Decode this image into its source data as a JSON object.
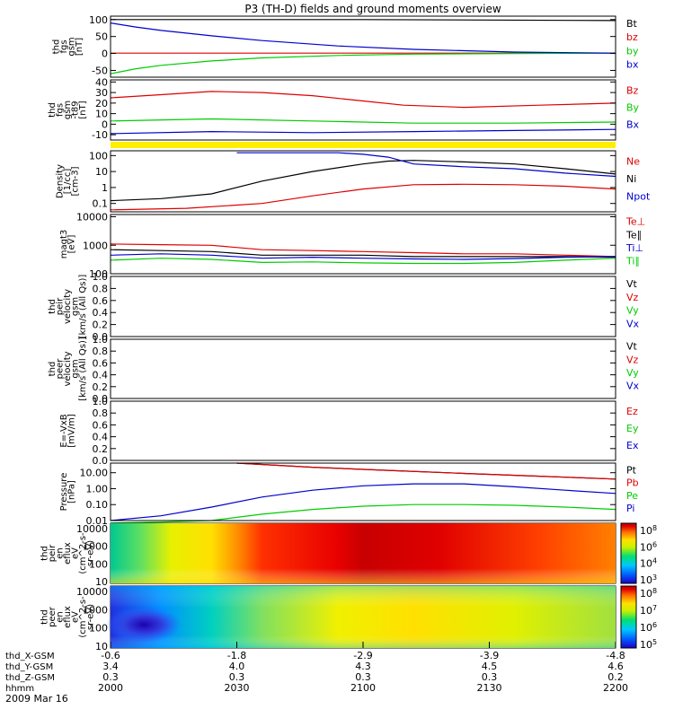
{
  "title": "P3 (TH-D) fields and ground moments overview",
  "chart_data": {
    "type": "line",
    "time_axis": {
      "tick_labels": [
        "2000",
        "2030",
        "2100",
        "2130",
        "2200"
      ],
      "row_labels": [
        "thd_X-GSM",
        "thd_Y-GSM",
        "thd_Z-GSM",
        "hhmm"
      ],
      "rows": [
        [
          "-0.6",
          "-1.8",
          "-2.9",
          "-3.9",
          "-4.8"
        ],
        [
          "3.4",
          "4.0",
          "4.3",
          "4.5",
          "4.6"
        ],
        [
          "0.3",
          "0.3",
          "0.3",
          "0.3",
          "0.2"
        ]
      ],
      "date_label": "2009 Mar 16"
    },
    "panels": [
      {
        "id": "fgs_gsm",
        "ylabel": [
          "thd",
          "fgs",
          "gsm",
          "[nT]"
        ],
        "scale": "linear",
        "ylim": [
          -70,
          110
        ],
        "ticks": [
          "100",
          "50",
          "0",
          "-50"
        ],
        "legend": [
          {
            "name": "Bt",
            "color": "#000000"
          },
          {
            "name": "bz",
            "color": "#dd0000"
          },
          {
            "name": "by",
            "color": "#00cc00"
          },
          {
            "name": "bx",
            "color": "#0000cc"
          }
        ],
        "series": [
          {
            "name": "Bt",
            "color": "#000000",
            "x": [
              0,
              0.5,
              1
            ],
            "values": [
              100,
              100,
              97
            ]
          },
          {
            "name": "bz",
            "color": "#dd0000",
            "x": [
              0,
              1
            ],
            "values": [
              1,
              1
            ]
          },
          {
            "name": "by",
            "color": "#00cc00",
            "x": [
              0,
              0.05,
              0.1,
              0.2,
              0.3,
              0.45,
              0.6,
              0.8,
              1
            ],
            "values": [
              -60,
              -45,
              -35,
              -22,
              -13,
              -6,
              -2,
              0,
              1
            ]
          },
          {
            "name": "bx",
            "color": "#0000cc",
            "x": [
              0,
              0.05,
              0.1,
              0.2,
              0.3,
              0.45,
              0.6,
              0.8,
              1
            ],
            "values": [
              90,
              78,
              68,
              52,
              38,
              22,
              12,
              4,
              1
            ]
          }
        ]
      },
      {
        "id": "fgs_gsm_model",
        "ylabel": [
          "thd",
          "fgs",
          "gsm",
          "-t89",
          "[nT]"
        ],
        "scale": "linear",
        "ylim": [
          -15,
          42
        ],
        "ticks": [
          "40",
          "30",
          "20",
          "10",
          "0",
          "-10"
        ],
        "legend": [
          {
            "name": "Bz",
            "color": "#dd0000"
          },
          {
            "name": "By",
            "color": "#00cc00"
          },
          {
            "name": "Bx",
            "color": "#0000cc"
          }
        ],
        "series": [
          {
            "name": "Bz",
            "color": "#dd0000",
            "x": [
              0,
              0.1,
              0.2,
              0.3,
              0.4,
              0.5,
              0.58,
              0.7,
              0.85,
              1
            ],
            "values": [
              25,
              28,
              31,
              30,
              27,
              22,
              18,
              16,
              18,
              20
            ]
          },
          {
            "name": "By",
            "color": "#00cc00",
            "x": [
              0,
              0.2,
              0.4,
              0.6,
              0.8,
              1
            ],
            "values": [
              3,
              5,
              3,
              1,
              1,
              2
            ]
          },
          {
            "name": "Bx",
            "color": "#0000cc",
            "x": [
              0,
              0.2,
              0.4,
              0.6,
              0.8,
              1
            ],
            "values": [
              -9,
              -7,
              -8,
              -7,
              -6,
              -5
            ]
          }
        ]
      },
      {
        "id": "density",
        "ylabel": [
          "Density",
          "[1/cc]",
          "[cm-3]"
        ],
        "scale": "log",
        "ylim": [
          0.03,
          200
        ],
        "ticks": [
          "100",
          "10",
          "1",
          "0.1"
        ],
        "legend": [
          {
            "name": "Ne",
            "color": "#dd0000"
          },
          {
            "name": "Ni",
            "color": "#000000"
          },
          {
            "name": "Npot",
            "color": "#0000cc"
          }
        ],
        "series": [
          {
            "name": "Ni",
            "color": "#000000",
            "x": [
              0,
              0.1,
              0.2,
              0.3,
              0.4,
              0.5,
              0.55,
              0.6,
              0.7,
              0.8,
              0.9,
              1
            ],
            "values": [
              0.15,
              0.2,
              0.4,
              2.5,
              10,
              30,
              45,
              50,
              40,
              30,
              15,
              7
            ]
          },
          {
            "name": "Ne",
            "color": "#dd0000",
            "x": [
              0,
              0.15,
              0.3,
              0.4,
              0.5,
              0.6,
              0.7,
              0.8,
              0.9,
              1
            ],
            "values": [
              0.04,
              0.05,
              0.1,
              0.3,
              0.8,
              1.5,
              1.6,
              1.5,
              1.2,
              0.8
            ]
          },
          {
            "name": "Npot",
            "color": "#0000cc",
            "x": [
              0.25,
              0.35,
              0.45,
              0.5,
              0.55,
              0.6,
              0.7,
              0.8,
              0.9,
              1
            ],
            "values": [
              150,
              150,
              150,
              120,
              80,
              30,
              20,
              15,
              8,
              5
            ]
          }
        ]
      },
      {
        "id": "temperature",
        "ylabel": [
          "magt3",
          "[eV]"
        ],
        "scale": "log",
        "ylim": [
          100,
          12000
        ],
        "ticks": [
          "10000",
          "1000",
          "100"
        ],
        "legend": [
          {
            "name": "Te⊥",
            "color": "#dd0000"
          },
          {
            "name": "Te∥",
            "color": "#000000"
          },
          {
            "name": "Ti⊥",
            "color": "#0000cc"
          },
          {
            "name": "Ti∥",
            "color": "#00cc00"
          }
        ],
        "series": [
          {
            "name": "Te⊥",
            "color": "#dd0000",
            "x": [
              0,
              0.1,
              0.2,
              0.3,
              0.4,
              0.5,
              0.6,
              0.7,
              0.8,
              0.9,
              1
            ],
            "values": [
              1100,
              1050,
              1000,
              700,
              650,
              600,
              550,
              500,
              500,
              450,
              400
            ]
          },
          {
            "name": "Te∥",
            "color": "#000000",
            "x": [
              0,
              0.1,
              0.2,
              0.3,
              0.4,
              0.5,
              0.6,
              0.7,
              0.8,
              0.9,
              1
            ],
            "values": [
              700,
              650,
              600,
              450,
              450,
              450,
              400,
              400,
              400,
              400,
              380
            ]
          },
          {
            "name": "Ti⊥",
            "color": "#0000cc",
            "x": [
              0,
              0.1,
              0.2,
              0.3,
              0.4,
              0.5,
              0.6,
              0.7,
              0.8,
              0.9,
              1
            ],
            "values": [
              450,
              500,
              450,
              350,
              380,
              350,
              330,
              320,
              340,
              380,
              400
            ]
          },
          {
            "name": "Ti∥",
            "color": "#00cc00",
            "x": [
              0,
              0.1,
              0.2,
              0.3,
              0.4,
              0.5,
              0.6,
              0.7,
              0.8,
              0.9,
              1
            ],
            "values": [
              300,
              350,
              320,
              250,
              260,
              240,
              230,
              230,
              250,
              300,
              350
            ]
          }
        ]
      },
      {
        "id": "peir_velocity",
        "ylabel": [
          "thd",
          "peir",
          "velocity",
          "gsm",
          "[km/s (All Qs)]"
        ],
        "scale": "linear",
        "ylim": [
          0,
          1
        ],
        "ticks": [
          "1.0",
          "0.8",
          "0.6",
          "0.4",
          "0.2",
          "0.0"
        ],
        "legend": [
          {
            "name": "Vt",
            "color": "#000000"
          },
          {
            "name": "Vz",
            "color": "#dd0000"
          },
          {
            "name": "Vy",
            "color": "#00cc00"
          },
          {
            "name": "Vx",
            "color": "#0000cc"
          }
        ],
        "series": []
      },
      {
        "id": "peer_velocity",
        "ylabel": [
          "thd",
          "peer",
          "velocity",
          "gsm",
          "[km/s (All Qs)]"
        ],
        "scale": "linear",
        "ylim": [
          0,
          1
        ],
        "ticks": [
          "1.0",
          "0.8",
          "0.6",
          "0.4",
          "0.2",
          "0.0"
        ],
        "legend": [
          {
            "name": "Vt",
            "color": "#000000"
          },
          {
            "name": "Vz",
            "color": "#dd0000"
          },
          {
            "name": "Vy",
            "color": "#00cc00"
          },
          {
            "name": "Vx",
            "color": "#0000cc"
          }
        ],
        "series": []
      },
      {
        "id": "e_vxb",
        "ylabel": [
          "E=-VxB",
          "[mV/m]"
        ],
        "scale": "linear",
        "ylim": [
          0,
          1
        ],
        "ticks": [
          "1.0",
          "0.8",
          "0.6",
          "0.4",
          "0.2",
          "0.0"
        ],
        "legend": [
          {
            "name": "Ez",
            "color": "#dd0000"
          },
          {
            "name": "Ey",
            "color": "#00cc00"
          },
          {
            "name": "Ex",
            "color": "#0000cc"
          }
        ],
        "series": []
      },
      {
        "id": "pressure",
        "ylabel": [
          "Pressure",
          "[nPa]"
        ],
        "scale": "log",
        "ylim": [
          0.01,
          40
        ],
        "ticks": [
          "10.00",
          "1.00",
          "0.10",
          "0.01"
        ],
        "legend": [
          {
            "name": "Pt",
            "color": "#000000"
          },
          {
            "name": "Pb",
            "color": "#dd0000"
          },
          {
            "name": "Pe",
            "color": "#00cc00"
          },
          {
            "name": "Pi",
            "color": "#0000cc"
          }
        ],
        "series": [
          {
            "name": "Pt",
            "color": "#000000",
            "x": [
              0.25,
              0.4,
              0.55,
              0.7,
              0.85,
              1
            ],
            "values": [
              40,
              22,
              14,
              9,
              6,
              4
            ]
          },
          {
            "name": "Pb",
            "color": "#dd0000",
            "x": [
              0.25,
              0.4,
              0.55,
              0.7,
              0.85,
              1
            ],
            "values": [
              40,
              22,
              14,
              9,
              6,
              4
            ]
          },
          {
            "name": "Pi",
            "color": "#0000cc",
            "x": [
              0,
              0.1,
              0.2,
              0.3,
              0.4,
              0.5,
              0.6,
              0.7,
              0.8,
              0.9,
              1
            ],
            "values": [
              0.01,
              0.02,
              0.07,
              0.3,
              0.8,
              1.5,
              2,
              2,
              1.3,
              0.8,
              0.5
            ]
          },
          {
            "name": "Pe",
            "color": "#00cc00",
            "x": [
              0,
              0.1,
              0.2,
              0.3,
              0.4,
              0.5,
              0.6,
              0.7,
              0.8,
              0.9,
              1
            ],
            "values": [
              0.007,
              0.008,
              0.01,
              0.025,
              0.05,
              0.08,
              0.1,
              0.1,
              0.09,
              0.07,
              0.05
            ]
          }
        ]
      },
      {
        "id": "peir_spec",
        "type": "heatmap",
        "ylabel": [
          "thd",
          "peir",
          "en",
          "eflux",
          "eV",
          "(cm^2-s-",
          "sr-eV)"
        ],
        "scale": "log",
        "ylim": [
          8,
          20000
        ],
        "ticks": [
          "10000",
          "1000",
          "100",
          "10"
        ],
        "colorbar": {
          "labels": [
            "10^8",
            "10^6",
            "10^4",
            "10^3"
          ]
        }
      },
      {
        "id": "peer_spec",
        "type": "heatmap",
        "ylabel": [
          "thd",
          "peer",
          "en",
          "eflux",
          "eV",
          "(cm^2-s-",
          "sr-eV)"
        ],
        "scale": "log",
        "ylim": [
          8,
          20000
        ],
        "ticks": [
          "10000",
          "1000",
          "100",
          "10"
        ],
        "colorbar": {
          "labels": [
            "10^8",
            "10^7",
            "10^6",
            "10^5"
          ]
        }
      }
    ]
  }
}
